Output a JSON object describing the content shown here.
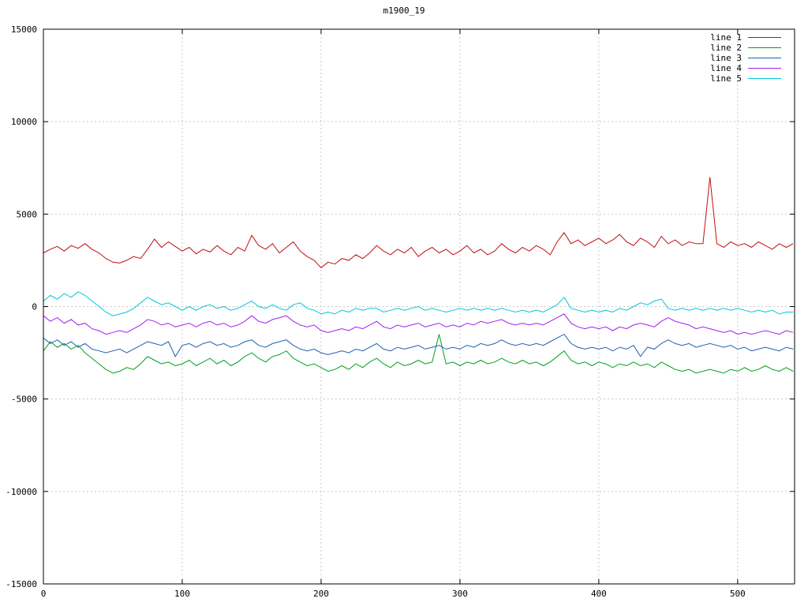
{
  "page": {
    "background": "#ffffff"
  },
  "chart_data": {
    "type": "line",
    "title": "m1900_19",
    "xlabel": "",
    "ylabel": "",
    "xlim": [
      0,
      541
    ],
    "ylim": [
      -15000,
      15000
    ],
    "xticks": [
      0,
      100,
      200,
      300,
      400,
      500
    ],
    "yticks": [
      -15000,
      -10000,
      -5000,
      0,
      5000,
      10000,
      15000
    ],
    "grid": true,
    "grid_color": "#c8c8c8",
    "border_color": "#000000",
    "legend_position": "top-right-inside",
    "x_start": 0,
    "x_step": 5,
    "series": [
      {
        "name": "line 1",
        "color": "#c01010",
        "values": [
          2900,
          3100,
          3250,
          3000,
          3300,
          3150,
          3400,
          3100,
          2900,
          2600,
          2400,
          2350,
          2500,
          2700,
          2600,
          3100,
          3650,
          3200,
          3500,
          3250,
          3000,
          3200,
          2850,
          3100,
          2950,
          3300,
          3000,
          2800,
          3200,
          3000,
          3850,
          3300,
          3100,
          3400,
          2900,
          3200,
          3500,
          3000,
          2700,
          2500,
          2100,
          2400,
          2300,
          2600,
          2500,
          2800,
          2600,
          2900,
          3300,
          3000,
          2800,
          3100,
          2900,
          3200,
          2700,
          3000,
          3200,
          2900,
          3100,
          2800,
          3000,
          3300,
          2900,
          3100,
          2800,
          3000,
          3400,
          3100,
          2900,
          3200,
          3000,
          3300,
          3100,
          2800,
          3500,
          4000,
          3400,
          3600,
          3300,
          3500,
          3700,
          3400,
          3600,
          3900,
          3500,
          3300,
          3700,
          3500,
          3200,
          3800,
          3400,
          3600,
          3300,
          3500,
          3400,
          3400,
          7000,
          3400,
          3200,
          3500,
          3300,
          3400,
          3200,
          3500,
          3300,
          3100,
          3400,
          3200,
          3400
        ]
      },
      {
        "name": "line 2",
        "color": "#00a020",
        "values": [
          -2400,
          -1900,
          -2200,
          -2000,
          -2300,
          -2100,
          -2500,
          -2800,
          -3100,
          -3400,
          -3600,
          -3500,
          -3300,
          -3400,
          -3100,
          -2700,
          -2900,
          -3100,
          -3000,
          -3200,
          -3100,
          -2900,
          -3200,
          -3000,
          -2800,
          -3100,
          -2900,
          -3200,
          -3000,
          -2700,
          -2500,
          -2800,
          -3000,
          -2700,
          -2600,
          -2400,
          -2800,
          -3000,
          -3200,
          -3100,
          -3300,
          -3500,
          -3400,
          -3200,
          -3400,
          -3100,
          -3300,
          -3000,
          -2800,
          -3100,
          -3300,
          -3000,
          -3200,
          -3100,
          -2900,
          -3100,
          -3000,
          -1500,
          -3100,
          -3000,
          -3200,
          -3000,
          -3100,
          -2900,
          -3100,
          -3000,
          -2800,
          -3000,
          -3100,
          -2900,
          -3100,
          -3000,
          -3200,
          -3000,
          -2700,
          -2400,
          -2900,
          -3100,
          -3000,
          -3200,
          -3000,
          -3100,
          -3300,
          -3100,
          -3200,
          -3000,
          -3200,
          -3100,
          -3300,
          -3000,
          -3200,
          -3400,
          -3500,
          -3400,
          -3600,
          -3500,
          -3400,
          -3500,
          -3600,
          -3400,
          -3500,
          -3300,
          -3500,
          -3400,
          -3200,
          -3400,
          -3500,
          -3300,
          -3500
        ]
      },
      {
        "name": "line 3",
        "color": "#2060b0",
        "values": [
          -1700,
          -2000,
          -1800,
          -2100,
          -1900,
          -2200,
          -2000,
          -2300,
          -2400,
          -2500,
          -2400,
          -2300,
          -2500,
          -2300,
          -2100,
          -1900,
          -2000,
          -2100,
          -1900,
          -2700,
          -2100,
          -2000,
          -2200,
          -2000,
          -1900,
          -2100,
          -2000,
          -2200,
          -2100,
          -1900,
          -1800,
          -2100,
          -2200,
          -2000,
          -1900,
          -1800,
          -2100,
          -2300,
          -2400,
          -2300,
          -2500,
          -2600,
          -2500,
          -2400,
          -2500,
          -2300,
          -2400,
          -2200,
          -2000,
          -2300,
          -2400,
          -2200,
          -2300,
          -2200,
          -2100,
          -2300,
          -2200,
          -2100,
          -2300,
          -2200,
          -2300,
          -2100,
          -2200,
          -2000,
          -2100,
          -2000,
          -1800,
          -2000,
          -2100,
          -2000,
          -2100,
          -2000,
          -2100,
          -1900,
          -1700,
          -1500,
          -2000,
          -2200,
          -2300,
          -2200,
          -2300,
          -2200,
          -2400,
          -2200,
          -2300,
          -2100,
          -2700,
          -2200,
          -2300,
          -2000,
          -1800,
          -2000,
          -2100,
          -2000,
          -2200,
          -2100,
          -2000,
          -2100,
          -2200,
          -2100,
          -2300,
          -2200,
          -2400,
          -2300,
          -2200,
          -2300,
          -2400,
          -2200,
          -2300
        ]
      },
      {
        "name": "line 4",
        "color": "#a020f0",
        "values": [
          -500,
          -800,
          -600,
          -900,
          -700,
          -1000,
          -900,
          -1200,
          -1300,
          -1500,
          -1400,
          -1300,
          -1400,
          -1200,
          -1000,
          -700,
          -800,
          -1000,
          -900,
          -1100,
          -1000,
          -900,
          -1100,
          -900,
          -800,
          -1000,
          -900,
          -1100,
          -1000,
          -800,
          -500,
          -800,
          -900,
          -700,
          -600,
          -500,
          -800,
          -1000,
          -1100,
          -1000,
          -1300,
          -1400,
          -1300,
          -1200,
          -1300,
          -1100,
          -1200,
          -1000,
          -800,
          -1100,
          -1200,
          -1000,
          -1100,
          -1000,
          -900,
          -1100,
          -1000,
          -900,
          -1100,
          -1000,
          -1100,
          -900,
          -1000,
          -800,
          -900,
          -800,
          -700,
          -900,
          -1000,
          -900,
          -1000,
          -900,
          -1000,
          -800,
          -600,
          -400,
          -900,
          -1100,
          -1200,
          -1100,
          -1200,
          -1100,
          -1300,
          -1100,
          -1200,
          -1000,
          -900,
          -1000,
          -1100,
          -800,
          -600,
          -800,
          -900,
          -1000,
          -1200,
          -1100,
          -1200,
          -1300,
          -1400,
          -1300,
          -1500,
          -1400,
          -1500,
          -1400,
          -1300,
          -1400,
          -1500,
          -1300,
          -1400
        ]
      },
      {
        "name": "line 5",
        "color": "#00c8d8",
        "values": [
          300,
          600,
          400,
          700,
          500,
          800,
          600,
          300,
          0,
          -300,
          -500,
          -400,
          -300,
          -100,
          200,
          500,
          300,
          100,
          200,
          0,
          -200,
          0,
          -200,
          0,
          100,
          -100,
          0,
          -200,
          -100,
          100,
          300,
          0,
          -100,
          100,
          -100,
          -200,
          100,
          200,
          -100,
          -200,
          -400,
          -300,
          -400,
          -200,
          -300,
          -100,
          -200,
          -100,
          -100,
          -300,
          -200,
          -100,
          -200,
          -100,
          0,
          -200,
          -100,
          -200,
          -300,
          -200,
          -100,
          -200,
          -100,
          -200,
          -100,
          -200,
          -100,
          -200,
          -300,
          -200,
          -300,
          -200,
          -300,
          -100,
          100,
          500,
          -100,
          -200,
          -300,
          -200,
          -300,
          -200,
          -300,
          -100,
          -200,
          0,
          200,
          100,
          300,
          400,
          -100,
          -200,
          -100,
          -200,
          -100,
          -200,
          -100,
          -200,
          -100,
          -200,
          -100,
          -200,
          -300,
          -200,
          -300,
          -200,
          -400,
          -300,
          -300
        ]
      }
    ]
  }
}
